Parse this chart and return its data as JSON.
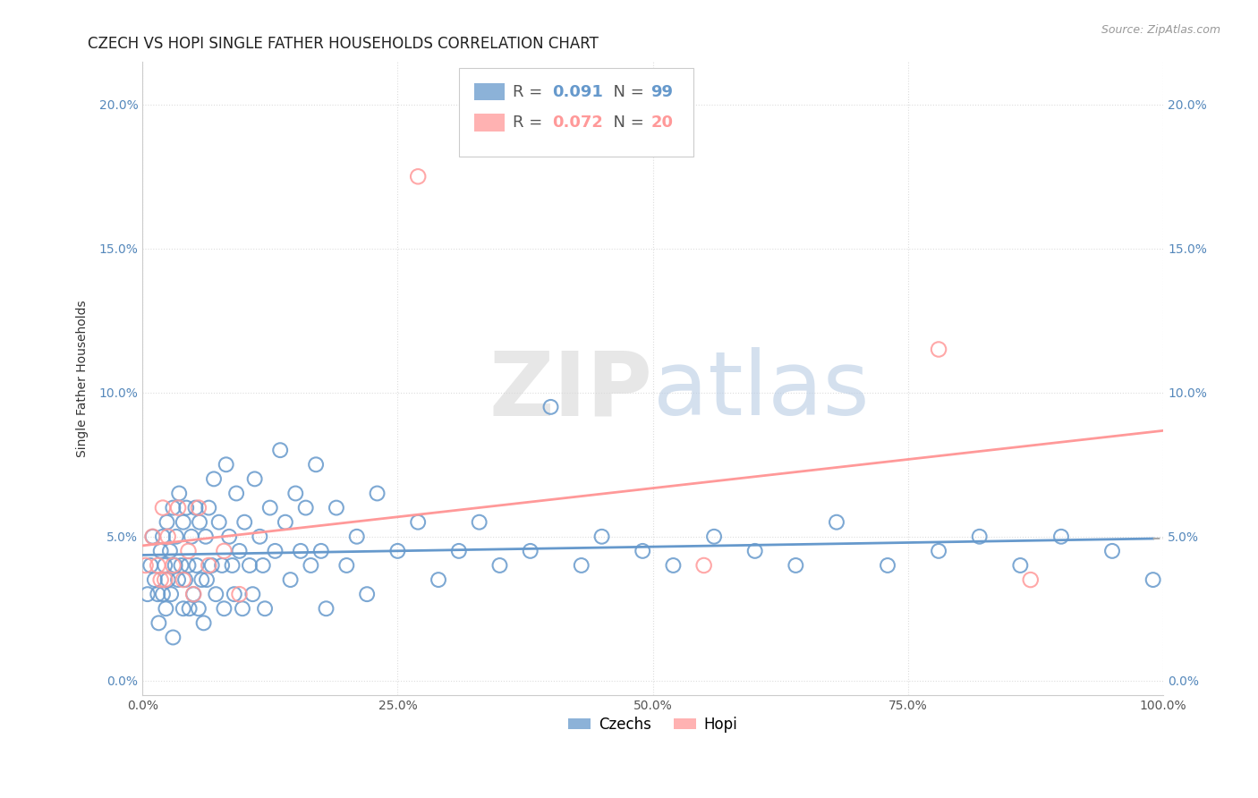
{
  "title": "CZECH VS HOPI SINGLE FATHER HOUSEHOLDS CORRELATION CHART",
  "source": "Source: ZipAtlas.com",
  "ylabel": "Single Father Households",
  "watermark": "ZIPatlas",
  "xlim": [
    0.0,
    1.0
  ],
  "ylim": [
    -0.005,
    0.215
  ],
  "xticks": [
    0.0,
    0.25,
    0.5,
    0.75,
    1.0
  ],
  "xtick_labels": [
    "0.0%",
    "25.0%",
    "50.0%",
    "75.0%",
    "100.0%"
  ],
  "yticks": [
    0.0,
    0.05,
    0.1,
    0.15,
    0.2
  ],
  "ytick_labels": [
    "0.0%",
    "5.0%",
    "10.0%",
    "15.0%",
    "20.0%"
  ],
  "czech_color": "#6699CC",
  "hopi_color": "#FF9999",
  "czech_edge_color": "#6699CC",
  "hopi_edge_color": "#FF9999",
  "czech_label": "Czechs",
  "hopi_label": "Hopi",
  "czech_R": "0.091",
  "czech_N": "99",
  "hopi_R": "0.072",
  "hopi_N": "20",
  "background_color": "#FFFFFF",
  "grid_color": "#DDDDDD",
  "title_fontsize": 12,
  "axis_fontsize": 10,
  "tick_fontsize": 10,
  "czech_x": [
    0.005,
    0.008,
    0.01,
    0.012,
    0.015,
    0.016,
    0.018,
    0.02,
    0.02,
    0.022,
    0.023,
    0.024,
    0.025,
    0.027,
    0.028,
    0.03,
    0.03,
    0.032,
    0.033,
    0.035,
    0.036,
    0.038,
    0.04,
    0.04,
    0.042,
    0.043,
    0.045,
    0.046,
    0.048,
    0.05,
    0.052,
    0.053,
    0.055,
    0.056,
    0.058,
    0.06,
    0.062,
    0.063,
    0.065,
    0.068,
    0.07,
    0.072,
    0.075,
    0.078,
    0.08,
    0.082,
    0.085,
    0.088,
    0.09,
    0.092,
    0.095,
    0.098,
    0.1,
    0.105,
    0.108,
    0.11,
    0.115,
    0.118,
    0.12,
    0.125,
    0.13,
    0.135,
    0.14,
    0.145,
    0.15,
    0.155,
    0.16,
    0.165,
    0.17,
    0.175,
    0.18,
    0.19,
    0.2,
    0.21,
    0.22,
    0.23,
    0.25,
    0.27,
    0.29,
    0.31,
    0.33,
    0.35,
    0.38,
    0.4,
    0.43,
    0.45,
    0.49,
    0.52,
    0.56,
    0.6,
    0.64,
    0.68,
    0.73,
    0.78,
    0.82,
    0.86,
    0.9,
    0.95,
    0.99
  ],
  "czech_y": [
    0.03,
    0.04,
    0.05,
    0.035,
    0.03,
    0.02,
    0.045,
    0.03,
    0.05,
    0.04,
    0.025,
    0.055,
    0.035,
    0.045,
    0.03,
    0.015,
    0.06,
    0.04,
    0.05,
    0.035,
    0.065,
    0.04,
    0.025,
    0.055,
    0.035,
    0.06,
    0.04,
    0.025,
    0.05,
    0.03,
    0.06,
    0.04,
    0.025,
    0.055,
    0.035,
    0.02,
    0.05,
    0.035,
    0.06,
    0.04,
    0.07,
    0.03,
    0.055,
    0.04,
    0.025,
    0.075,
    0.05,
    0.04,
    0.03,
    0.065,
    0.045,
    0.025,
    0.055,
    0.04,
    0.03,
    0.07,
    0.05,
    0.04,
    0.025,
    0.06,
    0.045,
    0.08,
    0.055,
    0.035,
    0.065,
    0.045,
    0.06,
    0.04,
    0.075,
    0.045,
    0.025,
    0.06,
    0.04,
    0.05,
    0.03,
    0.065,
    0.045,
    0.055,
    0.035,
    0.045,
    0.055,
    0.04,
    0.045,
    0.095,
    0.04,
    0.05,
    0.045,
    0.04,
    0.05,
    0.045,
    0.04,
    0.055,
    0.04,
    0.045,
    0.05,
    0.04,
    0.05,
    0.045,
    0.035
  ],
  "hopi_x": [
    0.003,
    0.01,
    0.015,
    0.018,
    0.02,
    0.022,
    0.025,
    0.03,
    0.035,
    0.04,
    0.045,
    0.05,
    0.055,
    0.065,
    0.08,
    0.095,
    0.27,
    0.55,
    0.78,
    0.87
  ],
  "hopi_y": [
    0.04,
    0.05,
    0.04,
    0.035,
    0.06,
    0.035,
    0.05,
    0.04,
    0.06,
    0.035,
    0.045,
    0.03,
    0.06,
    0.04,
    0.045,
    0.03,
    0.175,
    0.04,
    0.115,
    0.035
  ]
}
